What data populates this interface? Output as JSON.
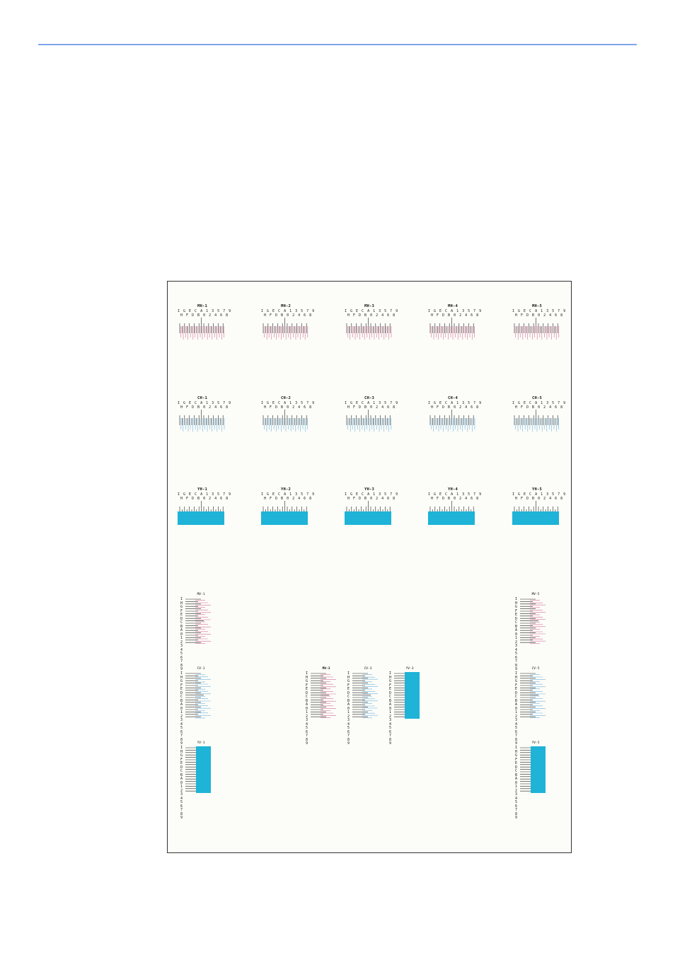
{
  "colors": {
    "rule": "#7ea6ea",
    "magenta": "#d2709c",
    "cyan": "#6fb4de",
    "yellow_block": "#1eb3d7",
    "black": "#222222"
  },
  "scale_row1": "I G E C A 1 3 5 7 9",
  "scale_row2": "H F D B 0 2 4 6 8",
  "scale_vertical": "I\nH\nG\nF\nE\nD\nC\nB\nA\n0\n1\n2\n3\n4\n5\n6\n7\n8\n9",
  "horizontal_patterns": {
    "mh": [
      "MH-1",
      "MH-2",
      "MH-3",
      "MH-4",
      "MH-5"
    ],
    "ch": [
      "CH-1",
      "CH-2",
      "CH-3",
      "CH-4",
      "CH-5"
    ],
    "yh": [
      "YH-1",
      "YH-2",
      "YH-3",
      "YH-4",
      "YH-5"
    ]
  },
  "vertical_patterns": {
    "mv1": "MV-1",
    "mv5": "MV-5",
    "cv1": "CV-1",
    "mv3": "MV-3",
    "cv3": "CV-3",
    "yv3": "YV-3",
    "cv5": "CV-5",
    "yv1": "YV-1",
    "yv5": "YV-5"
  }
}
